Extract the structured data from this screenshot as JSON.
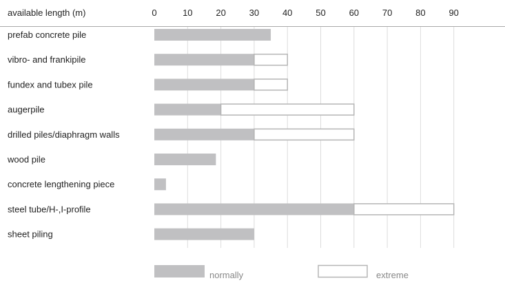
{
  "chart_data": {
    "type": "bar",
    "orientation": "horizontal",
    "stacked": true,
    "xlabel": "available length (m)",
    "xlim": [
      0,
      90
    ],
    "xticks": [
      0,
      10,
      20,
      30,
      40,
      50,
      60,
      70,
      80,
      90
    ],
    "grid": true,
    "legend_position": "bottom",
    "categories": [
      "prefab concrete pile",
      "vibro- and frankipile",
      "fundex and tubex pile",
      "augerpile",
      "drilled piles/diaphragm walls",
      "wood pile",
      "concrete lengthening piece",
      "steel tube/H-,I-profile",
      "sheet piling"
    ],
    "series": [
      {
        "name": "normally",
        "color": "#c0c0c2",
        "values": [
          35,
          30,
          30,
          20,
          30,
          18.5,
          3.5,
          60,
          30
        ]
      },
      {
        "name": "extreme",
        "color": "#ffffff",
        "values": [
          0,
          10,
          10,
          40,
          30,
          0,
          0,
          30,
          0
        ]
      }
    ]
  }
}
